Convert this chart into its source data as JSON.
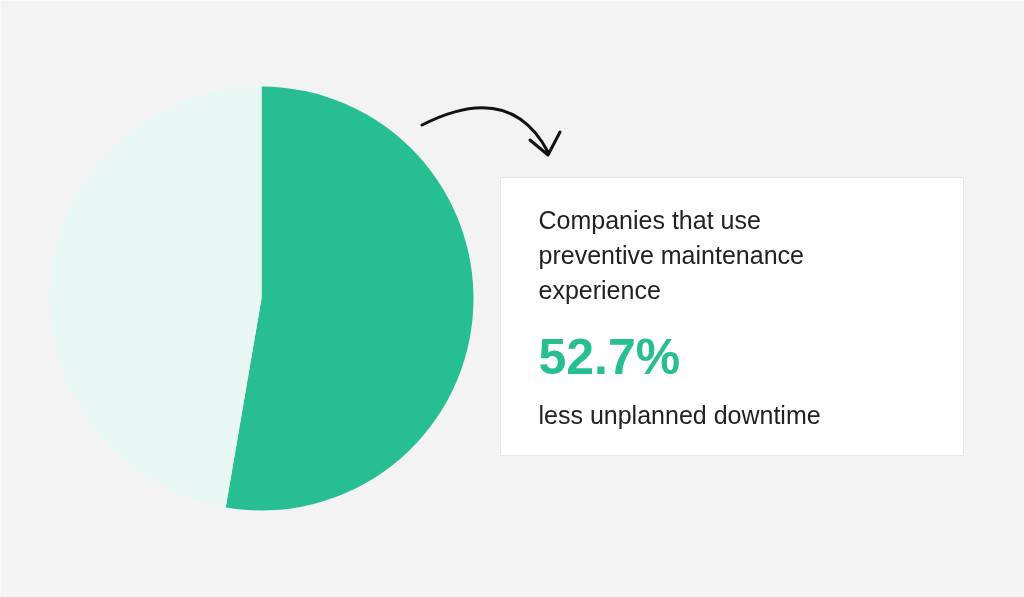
{
  "chart_data": {
    "type": "pie",
    "categories": [
      null,
      null
    ],
    "values": [
      52.7,
      47.3
    ],
    "colors": [
      "#27bf92",
      "#e8f7f3"
    ],
    "annotations": [
      "Companies that use\npreventive maintenance\nexperience",
      "52.7%",
      "less unplanned downtime"
    ]
  }
}
